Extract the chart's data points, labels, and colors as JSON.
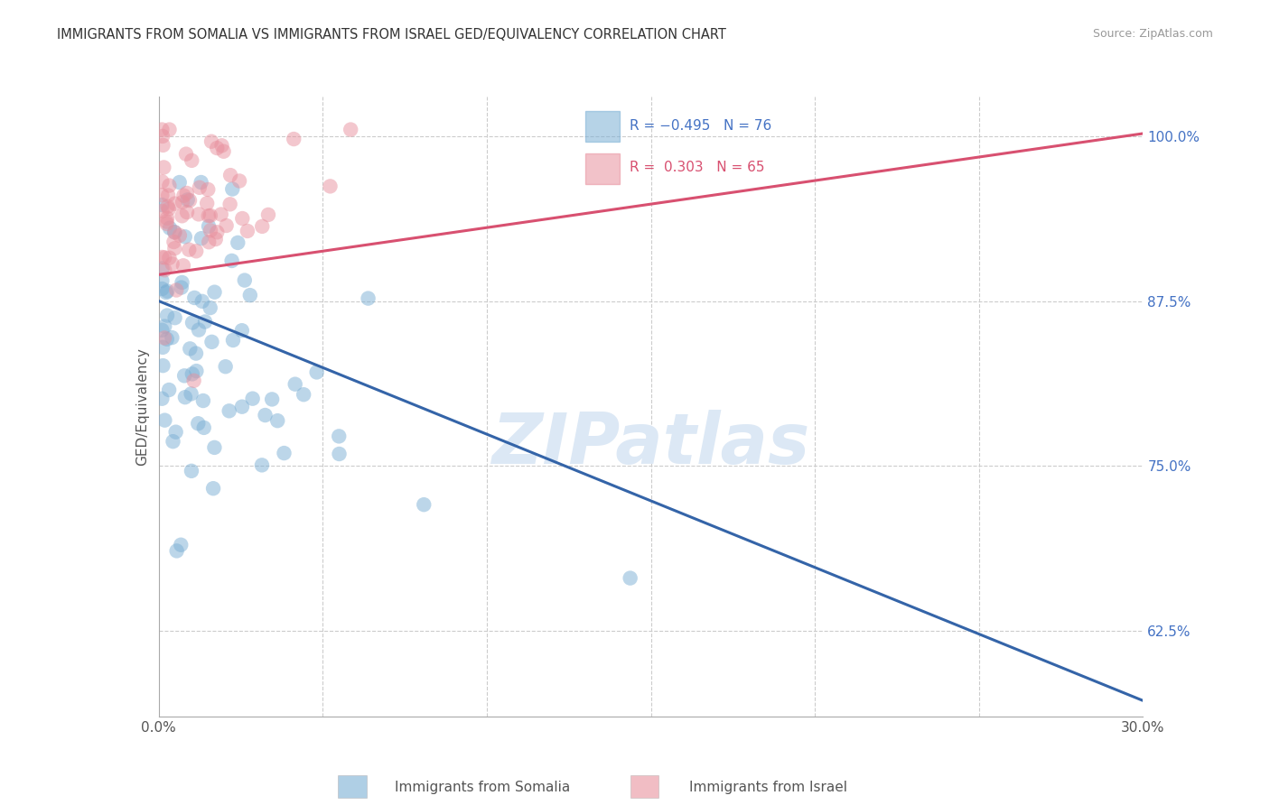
{
  "title": "IMMIGRANTS FROM SOMALIA VS IMMIGRANTS FROM ISRAEL GED/EQUIVALENCY CORRELATION CHART",
  "source": "Source: ZipAtlas.com",
  "ylabel": "GED/Equivalency",
  "color_somalia": "#7bafd4",
  "color_israel": "#e8919e",
  "line_color_somalia": "#3464a8",
  "line_color_israel": "#d85070",
  "watermark_text": "ZIPatlas",
  "watermark_color": "#dce8f5",
  "background_color": "#ffffff",
  "xlim": [
    0.0,
    0.3
  ],
  "ylim": [
    0.56,
    1.03
  ],
  "yticks": [
    0.625,
    0.75,
    0.875,
    1.0
  ],
  "ytick_labels": [
    "62.5%",
    "75.0%",
    "87.5%",
    "100.0%"
  ],
  "xticks": [
    0.0,
    0.05,
    0.1,
    0.15,
    0.2,
    0.25,
    0.3
  ],
  "xtick_labels": [
    "0.0%",
    "",
    "",
    "",
    "",
    "",
    "30.0%"
  ],
  "R_somalia": -0.495,
  "N_somalia": 76,
  "R_israel": 0.303,
  "N_israel": 65,
  "somalia_line_x0": 0.0,
  "somalia_line_y0": 0.875,
  "somalia_line_x1": 0.3,
  "somalia_line_y1": 0.572,
  "israel_line_x0": 0.0,
  "israel_line_y0": 0.895,
  "israel_line_x1": 0.3,
  "israel_line_y1": 1.002
}
